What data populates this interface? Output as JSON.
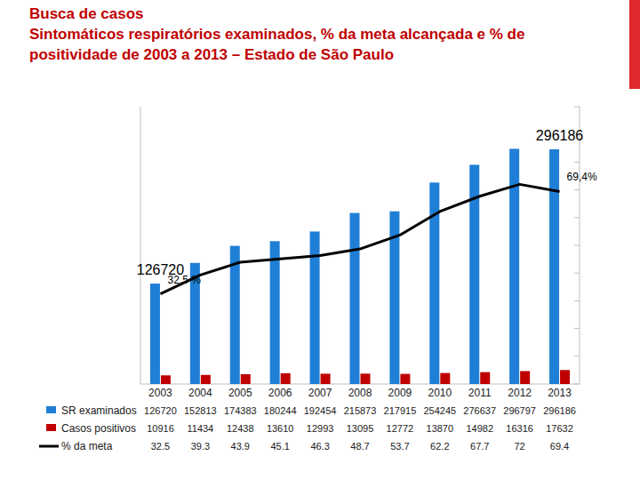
{
  "chart_data": {
    "type": "bar",
    "title": "Busca de casos",
    "subtitle": "Sintomáticos respiratórios examinados, % da meta alcançada e % de positividade de 2003 a 2013 – Estado de São Paulo",
    "categories": [
      "2003",
      "2004",
      "2005",
      "2006",
      "2007",
      "2008",
      "2009",
      "2010",
      "2011",
      "2012",
      "2013"
    ],
    "series": [
      {
        "name": "SR examinados",
        "color": "#1f7fd6",
        "values": [
          126720,
          152813,
          174383,
          180244,
          192454,
          215873,
          217915,
          254245,
          276637,
          296797,
          296186
        ]
      },
      {
        "name": "Casos positivos",
        "color": "#c00000",
        "values": [
          10916,
          11434,
          12438,
          13610,
          12993,
          13095,
          12772,
          13870,
          14982,
          16316,
          17632
        ]
      },
      {
        "name": "% da meta",
        "type": "line",
        "axis": "y2",
        "color": "#000000",
        "values": [
          32.5,
          39.3,
          43.9,
          45.1,
          46.3,
          48.7,
          53.7,
          62.2,
          67.7,
          72,
          69.4
        ]
      }
    ],
    "ylim": [
      0,
      350000
    ],
    "yticks": [],
    "y2lim": [
      0,
      100
    ],
    "y2ticks": [
      0,
      10,
      20,
      30,
      40,
      50,
      60,
      70,
      80,
      90,
      100
    ],
    "tick_labels": false,
    "grid": false,
    "legend": "bottom",
    "annotations": [
      {
        "text": "296186",
        "series": 0,
        "index": 10
      },
      {
        "text": "69,4%",
        "series": 2,
        "index": 10
      },
      {
        "text": "126720",
        "series": 0,
        "index": 0
      },
      {
        "text": "32,5 %",
        "series": 2,
        "index": 0
      }
    ]
  }
}
